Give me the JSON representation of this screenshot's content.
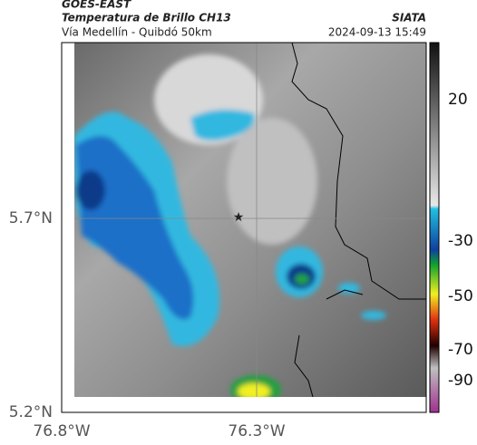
{
  "header": {
    "title": "GOES-EAST",
    "subtitle": "Temperatura de Brillo CH13",
    "route": "Vía Medellín - Quibdó 50km",
    "source": "SIATA",
    "timestamp": "2024-09-13 15:49"
  },
  "map": {
    "y_labels": [
      "5.7°N",
      "5.2°N"
    ],
    "x_labels": [
      "76.8°W",
      "76.3°W"
    ]
  },
  "colorbar": {
    "labels": [
      "20",
      "-30",
      "-50",
      "-70",
      "-90"
    ]
  }
}
